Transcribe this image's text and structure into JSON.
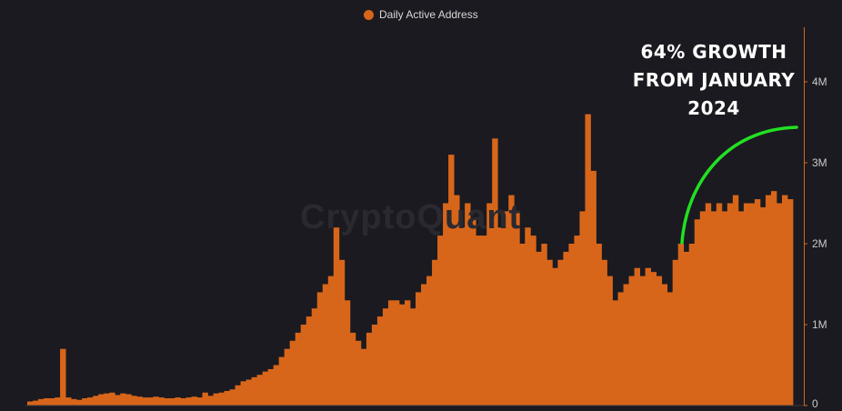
{
  "legend": {
    "label": "Daily Active Address",
    "color": "#d8661a"
  },
  "annotation": {
    "lines": [
      "64% GROWTH",
      "FROM JANUARY",
      "2024"
    ],
    "arc_color": "#22e022"
  },
  "watermark": "CryptoQuant",
  "chart_data": {
    "type": "bar",
    "series": [
      {
        "name": "Daily Active Address",
        "color": "#d8661a"
      }
    ],
    "y_axis": {
      "ticks": [
        "0",
        "1M",
        "2M",
        "3M",
        "4M"
      ],
      "tick_values": [
        0,
        1000000,
        2000000,
        3000000,
        4000000
      ],
      "ylim": [
        0,
        4500000
      ],
      "position": "right"
    },
    "grid": false,
    "x_axis_labels_visible": false,
    "profile_note": "values approximated from the rendered bars, left to right, in chronological order",
    "values": [
      50000,
      60000,
      80000,
      90000,
      90000,
      100000,
      700000,
      100000,
      80000,
      70000,
      90000,
      100000,
      120000,
      140000,
      150000,
      160000,
      130000,
      150000,
      140000,
      120000,
      110000,
      100000,
      100000,
      110000,
      100000,
      90000,
      90000,
      100000,
      90000,
      100000,
      110000,
      100000,
      160000,
      120000,
      150000,
      160000,
      180000,
      200000,
      250000,
      300000,
      320000,
      350000,
      380000,
      420000,
      450000,
      500000,
      600000,
      700000,
      800000,
      900000,
      1000000,
      1100000,
      1200000,
      1400000,
      1500000,
      1600000,
      2200000,
      1800000,
      1300000,
      900000,
      800000,
      700000,
      900000,
      1000000,
      1100000,
      1200000,
      1300000,
      1300000,
      1250000,
      1300000,
      1200000,
      1400000,
      1500000,
      1600000,
      1800000,
      2100000,
      2500000,
      3100000,
      2600000,
      2200000,
      2500000,
      2300000,
      2100000,
      2100000,
      2500000,
      3300000,
      2200000,
      2400000,
      2600000,
      2400000,
      2000000,
      2200000,
      2100000,
      1900000,
      2000000,
      1800000,
      1700000,
      1800000,
      1900000,
      2000000,
      2100000,
      2400000,
      3600000,
      2900000,
      2000000,
      1800000,
      1600000,
      1300000,
      1400000,
      1500000,
      1600000,
      1700000,
      1600000,
      1700000,
      1650000,
      1600000,
      1500000,
      1400000,
      1800000,
      2000000,
      1900000,
      2000000,
      2300000,
      2400000,
      2500000,
      2400000,
      2500000,
      2400000,
      2500000,
      2600000,
      2400000,
      2500000,
      2500000,
      2550000,
      2450000,
      2600000,
      2650000,
      2500000,
      2600000,
      2550000
    ]
  }
}
